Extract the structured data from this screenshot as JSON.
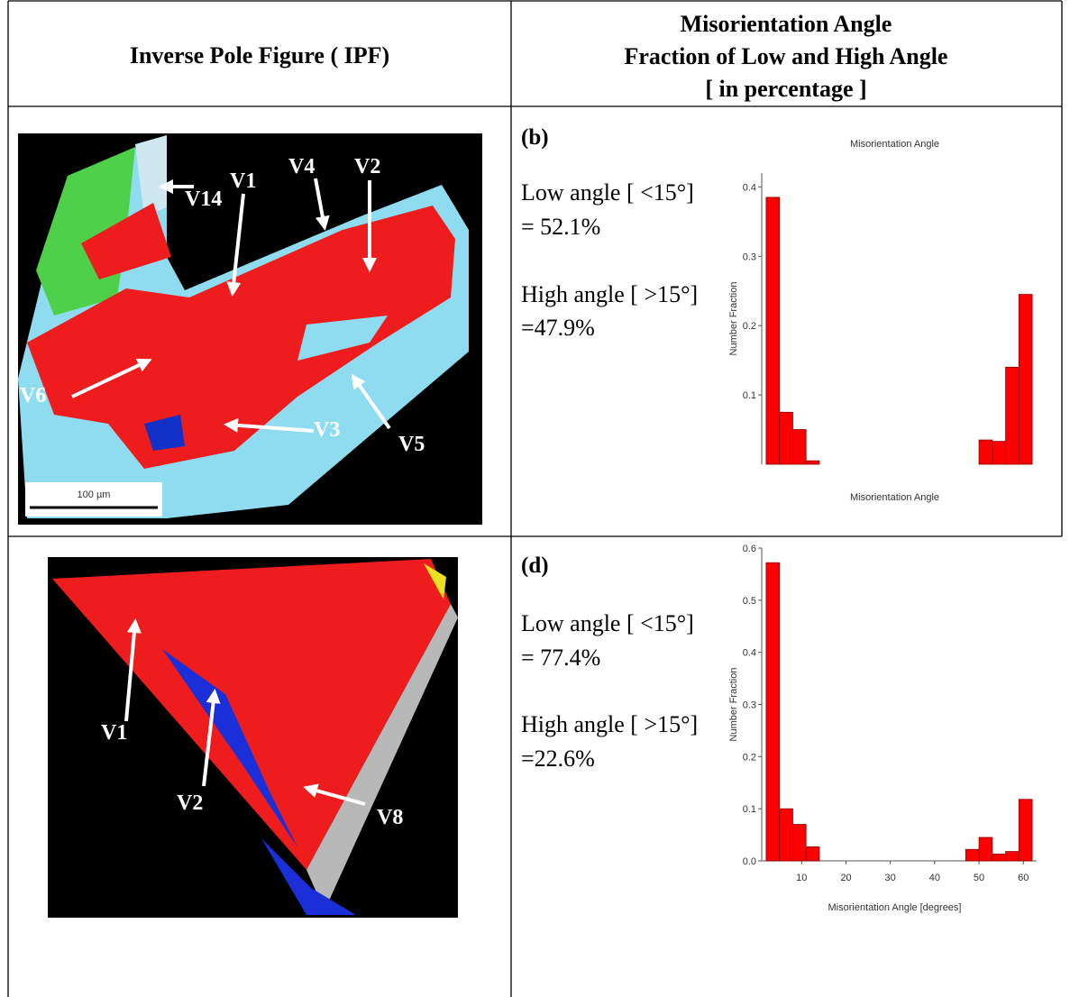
{
  "table": {
    "headers": [
      "Inverse Pole Figure ( IPF)",
      [
        "Misorientation Angle",
        "Fraction of Low and High Angle",
        "[ in percentage ]"
      ]
    ],
    "rows": [
      {
        "image_labels": [
          "V14",
          "V1",
          "V4",
          "V2",
          "V6",
          "V3",
          "V5"
        ],
        "scale_bar": "100 µm",
        "panel": "(b)",
        "low_angle": "Low angle [ <15°]",
        "low_value": "= 52.1%",
        "high_angle": "High angle [ >15°]",
        "high_value": "=47.9%"
      },
      {
        "image_labels": [
          "V1",
          "V2",
          "V8"
        ],
        "panel": "(d)",
        "low_angle": "Low angle [ <15°]",
        "low_value": "= 77.4%",
        "high_angle": "High angle [ >15°]",
        "high_value": "=22.6%"
      }
    ]
  },
  "chart_data": [
    {
      "type": "histogram",
      "title": "Misorientation Angle",
      "x_label": "Misorientation Angle",
      "y_label": "Number Fraction",
      "bins": [
        2,
        5,
        8,
        11,
        14,
        17,
        20,
        23,
        26,
        29,
        32,
        35,
        38,
        41,
        44,
        47,
        50,
        53,
        56,
        59,
        62
      ],
      "values": [
        0.385,
        0.075,
        0.05,
        0.005,
        0,
        0,
        0,
        0,
        0,
        0,
        0,
        0,
        0,
        0,
        0,
        0,
        0.035,
        0.033,
        0.14,
        0.245
      ],
      "color": "#ff0000",
      "xlim": [
        1,
        63
      ],
      "ylim": [
        0,
        0.42
      ],
      "yticks": [
        0.1,
        0.2,
        0.3,
        0.4
      ]
    },
    {
      "type": "histogram",
      "x_label": "Misorientation Angle [degrees]",
      "y_label": "Number Fraction",
      "bins": [
        2,
        5,
        8,
        11,
        14,
        17,
        20,
        23,
        26,
        29,
        32,
        35,
        38,
        41,
        44,
        47,
        50,
        53,
        56,
        59,
        62
      ],
      "values": [
        0.572,
        0.1,
        0.07,
        0.027,
        0,
        0,
        0,
        0,
        0,
        0,
        0,
        0,
        0,
        0,
        0,
        0.022,
        0.045,
        0.013,
        0.018,
        0.118
      ],
      "color": "#ff0000",
      "xlim": [
        1,
        63
      ],
      "ylim": [
        0,
        0.6
      ],
      "xticks": [
        10,
        20,
        30,
        40,
        50,
        60
      ],
      "yticks": [
        {
          "value": 0,
          "label": "0.0"
        },
        0.1,
        0.2,
        0.3,
        0.4,
        0.5,
        0.6
      ]
    }
  ]
}
